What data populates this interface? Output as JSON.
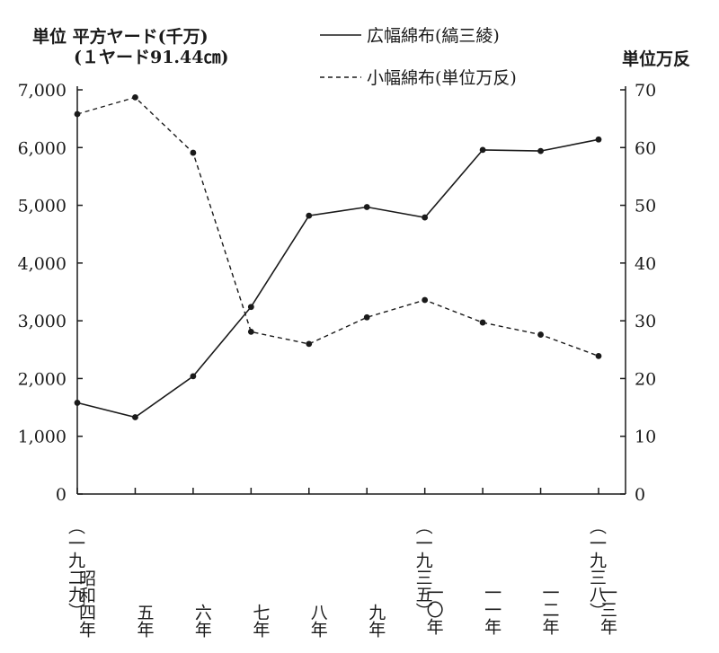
{
  "chart_data": {
    "type": "line",
    "left_axis_unit": "単位  平方ヤード(千万)",
    "left_axis_unit_note": "(１ヤード91.44㎝)",
    "right_axis_unit": "単位万反",
    "left_ylim": [
      0,
      7000
    ],
    "left_ticks": [
      "0",
      "1,000",
      "2,000",
      "3,000",
      "4,000",
      "5,000",
      "6,000",
      "7,000"
    ],
    "right_ylim": [
      0,
      70
    ],
    "right_ticks": [
      "0",
      "10",
      "20",
      "30",
      "40",
      "50",
      "60",
      "70"
    ],
    "categories": [
      {
        "top": "（一九二九）",
        "era": "昭和",
        "year": "四年"
      },
      {
        "top": "",
        "era": "",
        "year": "五年"
      },
      {
        "top": "",
        "era": "",
        "year": "六年"
      },
      {
        "top": "",
        "era": "",
        "year": "七年"
      },
      {
        "top": "",
        "era": "",
        "year": "八年"
      },
      {
        "top": "",
        "era": "",
        "year": "九年"
      },
      {
        "top": "（一九三五）",
        "era": "",
        "year": "一〇年"
      },
      {
        "top": "",
        "era": "",
        "year": "一一年"
      },
      {
        "top": "",
        "era": "",
        "year": "一二年"
      },
      {
        "top": "（一九三八）",
        "era": "",
        "year": "一三年"
      }
    ],
    "series": [
      {
        "name": "広幅綿布(縞三綾)",
        "axis": "left",
        "style": "solid",
        "values": [
          1580,
          1330,
          2040,
          3240,
          4820,
          4970,
          4790,
          5960,
          5940,
          6140
        ]
      },
      {
        "name": "小幅綿布(単位万反)",
        "axis": "right",
        "style": "dashed",
        "values": [
          65.8,
          68.7,
          59.1,
          28.1,
          26.0,
          30.6,
          33.6,
          29.7,
          27.6,
          23.9
        ]
      }
    ],
    "legend_position": "top-right",
    "grid": false
  }
}
